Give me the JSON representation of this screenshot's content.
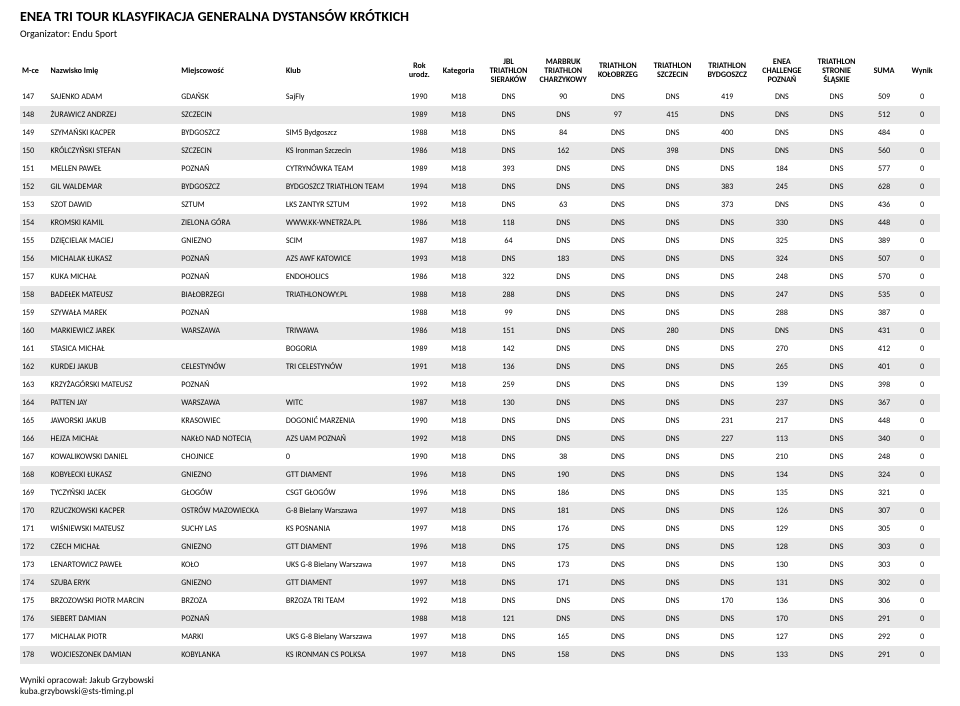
{
  "header": {
    "title": "ENEA TRI TOUR KLASYFIKACJA GENERALNA DYSTANSÓW KRÓTKICH",
    "subtitle_label": "Organizator:",
    "subtitle_value": "Endu Sport"
  },
  "columns": [
    {
      "label": "M-ce"
    },
    {
      "label": "Nazwisko Imię"
    },
    {
      "label": "Miejscowość"
    },
    {
      "label": "Klub"
    },
    {
      "label": "Rok urodz."
    },
    {
      "label": "Kategoria"
    },
    {
      "label": "JBL TRIATHLON SIERAKÓW"
    },
    {
      "label": "MARBRUK TRIATHLON CHARZYKOWY"
    },
    {
      "label": "TRIATHLON KOŁOBRZEG"
    },
    {
      "label": "TRIATHLON SZCZECIN"
    },
    {
      "label": "TRIATHLON BYDGOSZCZ"
    },
    {
      "label": "ENEA CHALLENGE POZNAŃ"
    },
    {
      "label": "TRIATHLON STRONIE ŚLĄSKIE"
    },
    {
      "label": "SUMA"
    },
    {
      "label": "Wynik"
    }
  ],
  "rows": [
    {
      "m": "147",
      "n": "SAJENKO ADAM",
      "c": "GDAŃSK",
      "k": "SajFly",
      "r": "1990",
      "kat": "M18",
      "e1": "DNS",
      "e2": "90",
      "e3": "DNS",
      "e4": "DNS",
      "e5": "419",
      "e6": "DNS",
      "e7": "DNS",
      "s": "509",
      "w": "0"
    },
    {
      "m": "148",
      "n": "ŻURAWICZ ANDRZEJ",
      "c": "SZCZECIN",
      "k": "",
      "r": "1989",
      "kat": "M18",
      "e1": "DNS",
      "e2": "DNS",
      "e3": "97",
      "e4": "415",
      "e5": "DNS",
      "e6": "DNS",
      "e7": "DNS",
      "s": "512",
      "w": "0"
    },
    {
      "m": "149",
      "n": "SZYMAŃSKI KACPER",
      "c": "BYDGOSZCZ",
      "k": "SIM5 Bydgoszcz",
      "r": "1988",
      "kat": "M18",
      "e1": "DNS",
      "e2": "84",
      "e3": "DNS",
      "e4": "DNS",
      "e5": "400",
      "e6": "DNS",
      "e7": "DNS",
      "s": "484",
      "w": "0"
    },
    {
      "m": "150",
      "n": "KRÓLCZYŃSKI STEFAN",
      "c": "SZCZECIN",
      "k": "KS Ironman Szczecin",
      "r": "1986",
      "kat": "M18",
      "e1": "DNS",
      "e2": "162",
      "e3": "DNS",
      "e4": "398",
      "e5": "DNS",
      "e6": "DNS",
      "e7": "DNS",
      "s": "560",
      "w": "0"
    },
    {
      "m": "151",
      "n": "MELLEN PAWEŁ",
      "c": "POZNAŃ",
      "k": "CYTRYNÓWKA TEAM",
      "r": "1989",
      "kat": "M18",
      "e1": "393",
      "e2": "DNS",
      "e3": "DNS",
      "e4": "DNS",
      "e5": "DNS",
      "e6": "184",
      "e7": "DNS",
      "s": "577",
      "w": "0"
    },
    {
      "m": "152",
      "n": "GIL WALDEMAR",
      "c": "BYDGOSZCZ",
      "k": "BYDGOSZCZ TRIATHLON TEAM",
      "r": "1994",
      "kat": "M18",
      "e1": "DNS",
      "e2": "DNS",
      "e3": "DNS",
      "e4": "DNS",
      "e5": "383",
      "e6": "245",
      "e7": "DNS",
      "s": "628",
      "w": "0"
    },
    {
      "m": "153",
      "n": "SZOT DAWID",
      "c": "SZTUM",
      "k": "LKS ZANTYR SZTUM",
      "r": "1992",
      "kat": "M18",
      "e1": "DNS",
      "e2": "63",
      "e3": "DNS",
      "e4": "DNS",
      "e5": "373",
      "e6": "DNS",
      "e7": "DNS",
      "s": "436",
      "w": "0"
    },
    {
      "m": "154",
      "n": "KROMSKI KAMIL",
      "c": "ZIELONA GÓRA",
      "k": "WWW.KK-WNETRZA.PL",
      "r": "1986",
      "kat": "M18",
      "e1": "118",
      "e2": "DNS",
      "e3": "DNS",
      "e4": "DNS",
      "e5": "DNS",
      "e6": "330",
      "e7": "DNS",
      "s": "448",
      "w": "0"
    },
    {
      "m": "155",
      "n": "DZIĘCIELAK MACIEJ",
      "c": "GNIEZNO",
      "k": "SCIM",
      "r": "1987",
      "kat": "M18",
      "e1": "64",
      "e2": "DNS",
      "e3": "DNS",
      "e4": "DNS",
      "e5": "DNS",
      "e6": "325",
      "e7": "DNS",
      "s": "389",
      "w": "0"
    },
    {
      "m": "156",
      "n": "MICHALAK ŁUKASZ",
      "c": "POZNAŃ",
      "k": "AZS AWF KATOWICE",
      "r": "1993",
      "kat": "M18",
      "e1": "DNS",
      "e2": "183",
      "e3": "DNS",
      "e4": "DNS",
      "e5": "DNS",
      "e6": "324",
      "e7": "DNS",
      "s": "507",
      "w": "0"
    },
    {
      "m": "157",
      "n": "KUKA MICHAŁ",
      "c": "POZNAŃ",
      "k": "ENDOHOLICS",
      "r": "1986",
      "kat": "M18",
      "e1": "322",
      "e2": "DNS",
      "e3": "DNS",
      "e4": "DNS",
      "e5": "DNS",
      "e6": "248",
      "e7": "DNS",
      "s": "570",
      "w": "0"
    },
    {
      "m": "158",
      "n": "BADEŁEK MATEUSZ",
      "c": "BIAŁOBRZEGI",
      "k": "TRIATHLONOWY.PL",
      "r": "1988",
      "kat": "M18",
      "e1": "288",
      "e2": "DNS",
      "e3": "DNS",
      "e4": "DNS",
      "e5": "DNS",
      "e6": "247",
      "e7": "DNS",
      "s": "535",
      "w": "0"
    },
    {
      "m": "159",
      "n": "SZYWAŁA MAREK",
      "c": "POZNAŃ",
      "k": "",
      "r": "1988",
      "kat": "M18",
      "e1": "99",
      "e2": "DNS",
      "e3": "DNS",
      "e4": "DNS",
      "e5": "DNS",
      "e6": "288",
      "e7": "DNS",
      "s": "387",
      "w": "0"
    },
    {
      "m": "160",
      "n": "MARKIEWICZ JAREK",
      "c": "WARSZAWA",
      "k": "TRIWAWA",
      "r": "1986",
      "kat": "M18",
      "e1": "151",
      "e2": "DNS",
      "e3": "DNS",
      "e4": "280",
      "e5": "DNS",
      "e6": "DNS",
      "e7": "DNS",
      "s": "431",
      "w": "0"
    },
    {
      "m": "161",
      "n": "STASICA MICHAŁ",
      "c": "",
      "k": "BOGORIA",
      "r": "1989",
      "kat": "M18",
      "e1": "142",
      "e2": "DNS",
      "e3": "DNS",
      "e4": "DNS",
      "e5": "DNS",
      "e6": "270",
      "e7": "DNS",
      "s": "412",
      "w": "0"
    },
    {
      "m": "162",
      "n": "KURDEJ JAKUB",
      "c": "CELESTYNÓW",
      "k": "TRI CELESTYNÓW",
      "r": "1991",
      "kat": "M18",
      "e1": "136",
      "e2": "DNS",
      "e3": "DNS",
      "e4": "DNS",
      "e5": "DNS",
      "e6": "265",
      "e7": "DNS",
      "s": "401",
      "w": "0"
    },
    {
      "m": "163",
      "n": "KRZYŻAGÓRSKI MATEUSZ",
      "c": "POZNAŃ",
      "k": "",
      "r": "1992",
      "kat": "M18",
      "e1": "259",
      "e2": "DNS",
      "e3": "DNS",
      "e4": "DNS",
      "e5": "DNS",
      "e6": "139",
      "e7": "DNS",
      "s": "398",
      "w": "0"
    },
    {
      "m": "164",
      "n": "PATTEN JAY",
      "c": "WARSZAWA",
      "k": "WITC",
      "r": "1987",
      "kat": "M18",
      "e1": "130",
      "e2": "DNS",
      "e3": "DNS",
      "e4": "DNS",
      "e5": "DNS",
      "e6": "237",
      "e7": "DNS",
      "s": "367",
      "w": "0"
    },
    {
      "m": "165",
      "n": "JAWORSKI JAKUB",
      "c": "KRASOWIEC",
      "k": "DOGONIĆ MARZENIA",
      "r": "1990",
      "kat": "M18",
      "e1": "DNS",
      "e2": "DNS",
      "e3": "DNS",
      "e4": "DNS",
      "e5": "231",
      "e6": "217",
      "e7": "DNS",
      "s": "448",
      "w": "0"
    },
    {
      "m": "166",
      "n": "HEJZA MICHAŁ",
      "c": "NAKŁO NAD NOTECIĄ",
      "k": "AZS UAM POZNAŃ",
      "r": "1992",
      "kat": "M18",
      "e1": "DNS",
      "e2": "DNS",
      "e3": "DNS",
      "e4": "DNS",
      "e5": "227",
      "e6": "113",
      "e7": "DNS",
      "s": "340",
      "w": "0"
    },
    {
      "m": "167",
      "n": "KOWALIKOWSKI DANIEL",
      "c": "CHOJNICE",
      "k": "0",
      "r": "1990",
      "kat": "M18",
      "e1": "DNS",
      "e2": "38",
      "e3": "DNS",
      "e4": "DNS",
      "e5": "DNS",
      "e6": "210",
      "e7": "DNS",
      "s": "248",
      "w": "0"
    },
    {
      "m": "168",
      "n": "KOBYŁECKI ŁUKASZ",
      "c": "GNIEZNO",
      "k": "GTT DIAMENT",
      "r": "1996",
      "kat": "M18",
      "e1": "DNS",
      "e2": "190",
      "e3": "DNS",
      "e4": "DNS",
      "e5": "DNS",
      "e6": "134",
      "e7": "DNS",
      "s": "324",
      "w": "0"
    },
    {
      "m": "169",
      "n": "TYCZYŃSKI JACEK",
      "c": "GŁOGÓW",
      "k": "CSGT GŁOGÓW",
      "r": "1996",
      "kat": "M18",
      "e1": "DNS",
      "e2": "186",
      "e3": "DNS",
      "e4": "DNS",
      "e5": "DNS",
      "e6": "135",
      "e7": "DNS",
      "s": "321",
      "w": "0"
    },
    {
      "m": "170",
      "n": "RZUCZKOWSKI KACPER",
      "c": "OSTRÓW MAZOWIECKA",
      "k": "G-8 Bielany Warszawa",
      "r": "1997",
      "kat": "M18",
      "e1": "DNS",
      "e2": "181",
      "e3": "DNS",
      "e4": "DNS",
      "e5": "DNS",
      "e6": "126",
      "e7": "DNS",
      "s": "307",
      "w": "0"
    },
    {
      "m": "171",
      "n": "WIŚNIEWSKI MATEUSZ",
      "c": "SUCHY LAS",
      "k": "KS POSNANIA",
      "r": "1997",
      "kat": "M18",
      "e1": "DNS",
      "e2": "176",
      "e3": "DNS",
      "e4": "DNS",
      "e5": "DNS",
      "e6": "129",
      "e7": "DNS",
      "s": "305",
      "w": "0"
    },
    {
      "m": "172",
      "n": "CZECH MICHAŁ",
      "c": "GNIEZNO",
      "k": "GTT DIAMENT",
      "r": "1996",
      "kat": "M18",
      "e1": "DNS",
      "e2": "175",
      "e3": "DNS",
      "e4": "DNS",
      "e5": "DNS",
      "e6": "128",
      "e7": "DNS",
      "s": "303",
      "w": "0"
    },
    {
      "m": "173",
      "n": "LENARTOWICZ PAWEŁ",
      "c": "KOŁO",
      "k": "UKS G-8 Bielany Warszawa",
      "r": "1997",
      "kat": "M18",
      "e1": "DNS",
      "e2": "173",
      "e3": "DNS",
      "e4": "DNS",
      "e5": "DNS",
      "e6": "130",
      "e7": "DNS",
      "s": "303",
      "w": "0"
    },
    {
      "m": "174",
      "n": "SZUBA ERYK",
      "c": "GNIEZNO",
      "k": "GTT DIAMENT",
      "r": "1997",
      "kat": "M18",
      "e1": "DNS",
      "e2": "171",
      "e3": "DNS",
      "e4": "DNS",
      "e5": "DNS",
      "e6": "131",
      "e7": "DNS",
      "s": "302",
      "w": "0"
    },
    {
      "m": "175",
      "n": "BRZOZOWSKI PIOTR MARCIN",
      "c": "BRZOZA",
      "k": "BRZOZA TRI TEAM",
      "r": "1992",
      "kat": "M18",
      "e1": "DNS",
      "e2": "DNS",
      "e3": "DNS",
      "e4": "DNS",
      "e5": "170",
      "e6": "136",
      "e7": "DNS",
      "s": "306",
      "w": "0"
    },
    {
      "m": "176",
      "n": "SIEBERT DAMIAN",
      "c": "POZNAŃ",
      "k": "",
      "r": "1988",
      "kat": "M18",
      "e1": "121",
      "e2": "DNS",
      "e3": "DNS",
      "e4": "DNS",
      "e5": "DNS",
      "e6": "170",
      "e7": "DNS",
      "s": "291",
      "w": "0"
    },
    {
      "m": "177",
      "n": "MICHALAK PIOTR",
      "c": "MARKI",
      "k": "UKS G-8 Bielany Warszawa",
      "r": "1997",
      "kat": "M18",
      "e1": "DNS",
      "e2": "165",
      "e3": "DNS",
      "e4": "DNS",
      "e5": "DNS",
      "e6": "127",
      "e7": "DNS",
      "s": "292",
      "w": "0"
    },
    {
      "m": "178",
      "n": "WOJCIESZONEK DAMIAN",
      "c": "KOBYLANKA",
      "k": "KS IRONMAN CS POLKSA",
      "r": "1997",
      "kat": "M18",
      "e1": "DNS",
      "e2": "158",
      "e3": "DNS",
      "e4": "DNS",
      "e5": "DNS",
      "e6": "133",
      "e7": "DNS",
      "s": "291",
      "w": "0"
    }
  ],
  "footer": {
    "line1": "Wyniki opracował: Jakub Grzybowski",
    "line2": "kuba.grzybowski@sts-timing.pl"
  },
  "style": {
    "row_even_bg": "#e8e8e8",
    "row_odd_bg": "#ffffff"
  }
}
